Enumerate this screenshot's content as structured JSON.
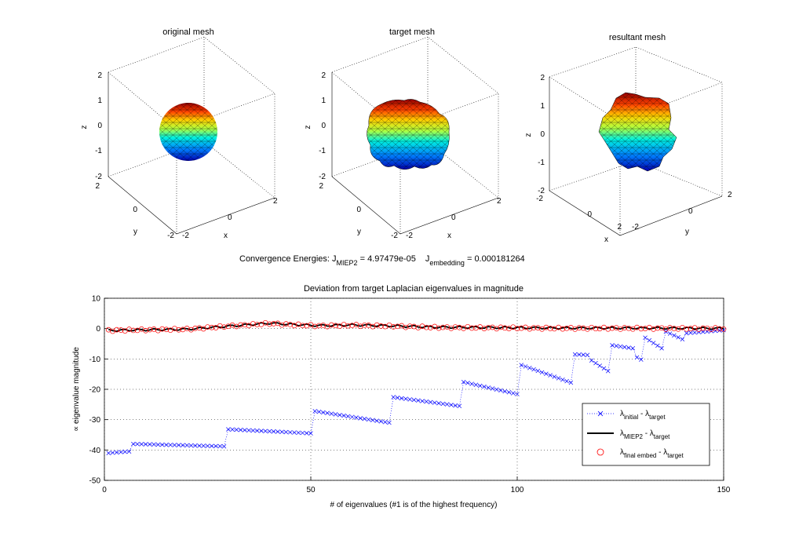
{
  "meshes": [
    {
      "title": "original mesh",
      "zticks": [
        "2",
        "1",
        "0",
        "-1",
        "-2"
      ],
      "y_ticks": [
        "2",
        "0",
        "-2"
      ],
      "x_ticks": [
        "-2",
        "0",
        "2"
      ],
      "xlabel": "x",
      "ylabel": "y",
      "zlabel": "z"
    },
    {
      "title": "target mesh",
      "zticks": [
        "2",
        "1",
        "0",
        "-1",
        "-2"
      ],
      "y_ticks": [
        "2",
        "0",
        "-2"
      ],
      "x_ticks": [
        "-2",
        "0",
        "2"
      ],
      "xlabel": "x",
      "ylabel": "y",
      "zlabel": "z"
    },
    {
      "title": "resultant mesh",
      "zticks": [
        "2",
        "1",
        "0",
        "-1",
        "-2"
      ],
      "x_ticks": [
        "-2",
        "0",
        "2"
      ],
      "y_ticks": [
        "-2",
        "0",
        "2"
      ],
      "xlabel": "x",
      "ylabel": "y",
      "zlabel": "z"
    }
  ],
  "energies": {
    "prefix": "Convergence Energies: J",
    "sub1": "MIEP2",
    "val1": " = 4.97479e-05",
    "mid": "J",
    "sub2": "embedding",
    "val2": " = 0.000181264"
  },
  "chart_data": {
    "type": "line",
    "title": "Deviation from target Laplacian eigenvalues in magnitude",
    "xlabel": "# of eigenvalues (#1 is of the highest frequency)",
    "ylabel": "∝ eigenvalue magnitude",
    "xlim": [
      0,
      150
    ],
    "ylim": [
      -50,
      10
    ],
    "xticks": [
      0,
      50,
      100,
      150
    ],
    "yticks": [
      10,
      0,
      -10,
      -20,
      -30,
      -40,
      -50
    ],
    "grid": true,
    "legend_position": "bottom-right",
    "series": [
      {
        "name": "initial",
        "legend_sym": "λ",
        "legend_sub1": "initial",
        "legend_mid": " - λ",
        "legend_sub2": "target",
        "style": "dotted-x",
        "color": "#0000ff",
        "segments": [
          {
            "x0": 1,
            "x1": 6,
            "y0": -41.0,
            "y1": -40.5
          },
          {
            "x0": 7,
            "x1": 29,
            "y0": -38.0,
            "y1": -38.8
          },
          {
            "x0": 30,
            "x1": 50,
            "y0": -33.2,
            "y1": -34.5
          },
          {
            "x0": 51,
            "x1": 69,
            "y0": -27.2,
            "y1": -31.0
          },
          {
            "x0": 70,
            "x1": 86,
            "y0": -22.6,
            "y1": -25.5
          },
          {
            "x0": 87,
            "x1": 100,
            "y0": -17.6,
            "y1": -21.6
          },
          {
            "x0": 101,
            "x1": 113,
            "y0": -12.0,
            "y1": -17.8
          },
          {
            "x0": 114,
            "x1": 117,
            "y0": -8.5,
            "y1": -8.7
          },
          {
            "x0": 118,
            "x1": 122,
            "y0": -10.5,
            "y1": -14.0
          },
          {
            "x0": 123,
            "x1": 128,
            "y0": -5.5,
            "y1": -6.5
          },
          {
            "x0": 129,
            "x1": 130,
            "y0": -9.5,
            "y1": -10.2
          },
          {
            "x0": 131,
            "x1": 135,
            "y0": -3.0,
            "y1": -6.5
          },
          {
            "x0": 136,
            "x1": 140,
            "y0": -1.0,
            "y1": -3.5
          },
          {
            "x0": 141,
            "x1": 150,
            "y0": -1.5,
            "y1": -0.5
          }
        ]
      },
      {
        "name": "MIEP2",
        "legend_sym": "λ",
        "legend_sub1": "MIEP2",
        "legend_mid": " - λ",
        "legend_sub2": "target",
        "style": "solid",
        "color": "#000000",
        "knots": [
          [
            1,
            -0.6
          ],
          [
            20,
            -0.2
          ],
          [
            30,
            0.8
          ],
          [
            40,
            1.8
          ],
          [
            45,
            1.4
          ],
          [
            52,
            1.0
          ],
          [
            60,
            1.2
          ],
          [
            70,
            0.9
          ],
          [
            80,
            0.5
          ],
          [
            90,
            0.4
          ],
          [
            100,
            0.3
          ],
          [
            110,
            0.2
          ],
          [
            130,
            0.2
          ],
          [
            150,
            0.1
          ]
        ]
      },
      {
        "name": "final embed",
        "legend_sym": "λ",
        "legend_sub1": "final embed",
        "legend_mid": " - λ",
        "legend_sub2": "target",
        "style": "circle",
        "color": "#ff0000",
        "knots": [
          [
            1,
            -0.6
          ],
          [
            20,
            -0.2
          ],
          [
            30,
            0.8
          ],
          [
            40,
            1.7
          ],
          [
            45,
            1.3
          ],
          [
            52,
            0.9
          ],
          [
            60,
            1.1
          ],
          [
            70,
            0.8
          ],
          [
            80,
            0.4
          ],
          [
            90,
            0.3
          ],
          [
            100,
            0.2
          ],
          [
            110,
            0.1
          ],
          [
            130,
            0.1
          ],
          [
            150,
            0.0
          ]
        ]
      }
    ]
  }
}
